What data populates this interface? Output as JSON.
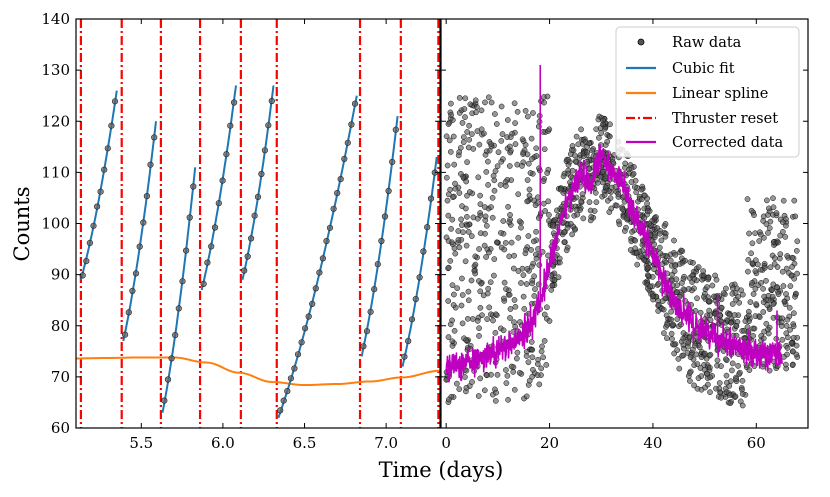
{
  "chart_data": [
    {
      "type": "line",
      "panel": "left",
      "xlabel": "Time (days)",
      "ylabel": "Counts",
      "xlim": [
        5.1,
        7.33
      ],
      "ylim": [
        60,
        140
      ],
      "xticks": [
        5.5,
        6.0,
        6.5,
        7.0
      ],
      "xtick_labels": [
        "5.5",
        "6.0",
        "6.5",
        "7.0"
      ],
      "yticks": [
        60,
        70,
        80,
        90,
        100,
        110,
        120,
        130,
        140
      ],
      "ytick_labels": [
        "60",
        "70",
        "80",
        "90",
        "100",
        "110",
        "120",
        "130",
        "140"
      ],
      "thruster_resets": [
        5.13,
        5.38,
        5.62,
        5.86,
        6.11,
        6.33,
        6.84,
        7.09,
        7.32
      ],
      "segments": [
        {
          "start": 5.13,
          "end": 5.35,
          "y0": 89,
          "y1": 126
        },
        {
          "start": 5.39,
          "end": 5.59,
          "y0": 77,
          "y1": 120
        },
        {
          "start": 5.63,
          "end": 5.83,
          "y0": 63,
          "y1": 111
        },
        {
          "start": 5.87,
          "end": 6.08,
          "y0": 87,
          "y1": 127
        },
        {
          "start": 6.12,
          "end": 6.31,
          "y0": 89,
          "y1": 127
        },
        {
          "start": 6.34,
          "end": 6.82,
          "y0": 62,
          "y1": 125
        },
        {
          "start": 6.85,
          "end": 7.07,
          "y0": 74,
          "y1": 121
        },
        {
          "start": 7.1,
          "end": 7.31,
          "y0": 72,
          "y1": 113
        }
      ],
      "spline": {
        "x": [
          5.1,
          5.3,
          5.5,
          5.7,
          5.9,
          6.1,
          6.3,
          6.5,
          6.7,
          6.9,
          7.1,
          7.33
        ],
        "y": [
          73.6,
          73.7,
          73.8,
          73.8,
          72.8,
          70.8,
          69.0,
          68.4,
          68.6,
          69.1,
          69.9,
          71.2
        ]
      }
    },
    {
      "type": "scatter",
      "panel": "right",
      "xlabel": "Time (days)",
      "xlim": [
        -1,
        70
      ],
      "ylim": [
        60,
        140
      ],
      "xticks": [
        0,
        20,
        40,
        60
      ],
      "xtick_labels": [
        "0",
        "20",
        "40",
        "60"
      ],
      "series": [
        {
          "name": "Raw data",
          "kind": "points",
          "color": "#000000"
        },
        {
          "name": "Cubic fit",
          "kind": "line",
          "color": "#1f77b4"
        },
        {
          "name": "Linear spline",
          "kind": "line",
          "color": "#ff7f0e"
        },
        {
          "name": "Thruster reset",
          "kind": "dashdot",
          "color": "#ff0000"
        },
        {
          "name": "Corrected data",
          "kind": "line",
          "color": "#c000c0"
        }
      ],
      "corrected_trend": {
        "x": [
          0,
          5,
          10,
          15,
          18,
          20,
          23,
          26,
          28,
          30,
          32,
          34,
          36,
          40,
          44,
          48,
          52,
          56,
          60,
          64,
          65
        ],
        "y": [
          72,
          73,
          75,
          78,
          84,
          92,
          103,
          110,
          108,
          114,
          110,
          108,
          103,
          94,
          85,
          80,
          78,
          76,
          75,
          74,
          74
        ]
      },
      "corrected_spikes": [
        {
          "x": 18.2,
          "y": 131
        },
        {
          "x": 52.5,
          "y": 86
        },
        {
          "x": 64.0,
          "y": 83
        }
      ]
    }
  ]
}
